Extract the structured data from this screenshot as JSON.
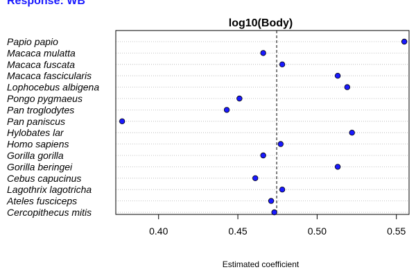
{
  "response_label": "Response: WB",
  "chart_data": {
    "type": "scatter",
    "title": "log10(Body)",
    "xlabel": "Estimated coefficient",
    "ylabel": "",
    "xlim": [
      0.373,
      0.558
    ],
    "xticks": [
      "0.40",
      "0.45",
      "0.50",
      "0.55"
    ],
    "xtick_values": [
      0.4,
      0.45,
      0.5,
      0.55
    ],
    "reference_line": 0.4745,
    "grid": "horizontal dotted",
    "point_color": "#1a1aff",
    "categories": [
      "Papio papio",
      "Macaca mulatta",
      "Macaca fuscata",
      "Macaca fascicularis",
      "Lophocebus albigena",
      "Pongo pygmaeus",
      "Pan troglodytes",
      "Pan paniscus",
      "Hylobates lar",
      "Homo sapiens",
      "Gorilla gorilla",
      "Gorilla beringei",
      "Cebus capucinus",
      "Lagothrix lagotricha",
      "Ateles fusciceps",
      "Cercopithecus mitis"
    ],
    "values": [
      0.555,
      0.466,
      0.478,
      0.513,
      0.519,
      0.451,
      0.443,
      0.377,
      0.522,
      0.477,
      0.466,
      0.513,
      0.461,
      0.478,
      0.471,
      0.473
    ]
  }
}
